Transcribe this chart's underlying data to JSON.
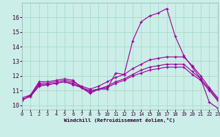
{
  "xlabel": "Windchill (Refroidissement éolien,°C)",
  "background_color": "#cceee8",
  "grid_color": "#aaddcc",
  "line_color": "#990099",
  "xlim": [
    0,
    23
  ],
  "ylim": [
    9.7,
    17.0
  ],
  "yticks": [
    10,
    11,
    12,
    13,
    14,
    15,
    16
  ],
  "xticks": [
    0,
    1,
    2,
    3,
    4,
    5,
    6,
    7,
    8,
    9,
    10,
    11,
    12,
    13,
    14,
    15,
    16,
    17,
    18,
    19,
    20,
    21,
    22,
    23
  ],
  "series": [
    {
      "x": [
        0,
        1,
        2,
        3,
        4,
        5,
        6,
        7,
        8,
        9,
        10,
        11,
        12,
        13,
        14,
        15,
        16,
        17,
        18,
        19,
        20,
        21,
        22,
        23
      ],
      "y": [
        10.3,
        10.7,
        11.6,
        11.6,
        11.7,
        11.8,
        11.7,
        11.2,
        10.8,
        11.1,
        11.1,
        12.2,
        12.1,
        14.4,
        15.7,
        16.1,
        16.3,
        16.6,
        14.7,
        13.4,
        12.6,
        11.8,
        10.2,
        9.8
      ]
    },
    {
      "x": [
        0,
        1,
        2,
        3,
        4,
        5,
        6,
        7,
        8,
        9,
        10,
        11,
        12,
        13,
        14,
        15,
        16,
        17,
        18,
        19,
        20,
        21,
        22,
        23
      ],
      "y": [
        10.5,
        10.7,
        11.5,
        11.5,
        11.6,
        11.7,
        11.6,
        11.3,
        11.1,
        11.3,
        11.6,
        11.9,
        12.1,
        12.5,
        12.8,
        13.1,
        13.2,
        13.3,
        13.3,
        13.3,
        12.7,
        12.0,
        11.2,
        10.5
      ]
    },
    {
      "x": [
        0,
        1,
        2,
        3,
        4,
        5,
        6,
        7,
        8,
        9,
        10,
        11,
        12,
        13,
        14,
        15,
        16,
        17,
        18,
        19,
        20,
        21,
        22,
        23
      ],
      "y": [
        10.4,
        10.6,
        11.4,
        11.4,
        11.5,
        11.6,
        11.5,
        11.2,
        11.0,
        11.1,
        11.3,
        11.6,
        11.8,
        12.1,
        12.4,
        12.6,
        12.7,
        12.8,
        12.8,
        12.8,
        12.3,
        11.8,
        11.1,
        10.4
      ]
    },
    {
      "x": [
        0,
        1,
        2,
        3,
        4,
        5,
        6,
        7,
        8,
        9,
        10,
        11,
        12,
        13,
        14,
        15,
        16,
        17,
        18,
        19,
        20,
        21,
        22,
        23
      ],
      "y": [
        10.4,
        10.6,
        11.3,
        11.4,
        11.5,
        11.6,
        11.4,
        11.2,
        10.9,
        11.1,
        11.2,
        11.5,
        11.7,
        12.0,
        12.2,
        12.4,
        12.5,
        12.6,
        12.6,
        12.6,
        12.1,
        11.7,
        11.0,
        10.3
      ]
    }
  ]
}
